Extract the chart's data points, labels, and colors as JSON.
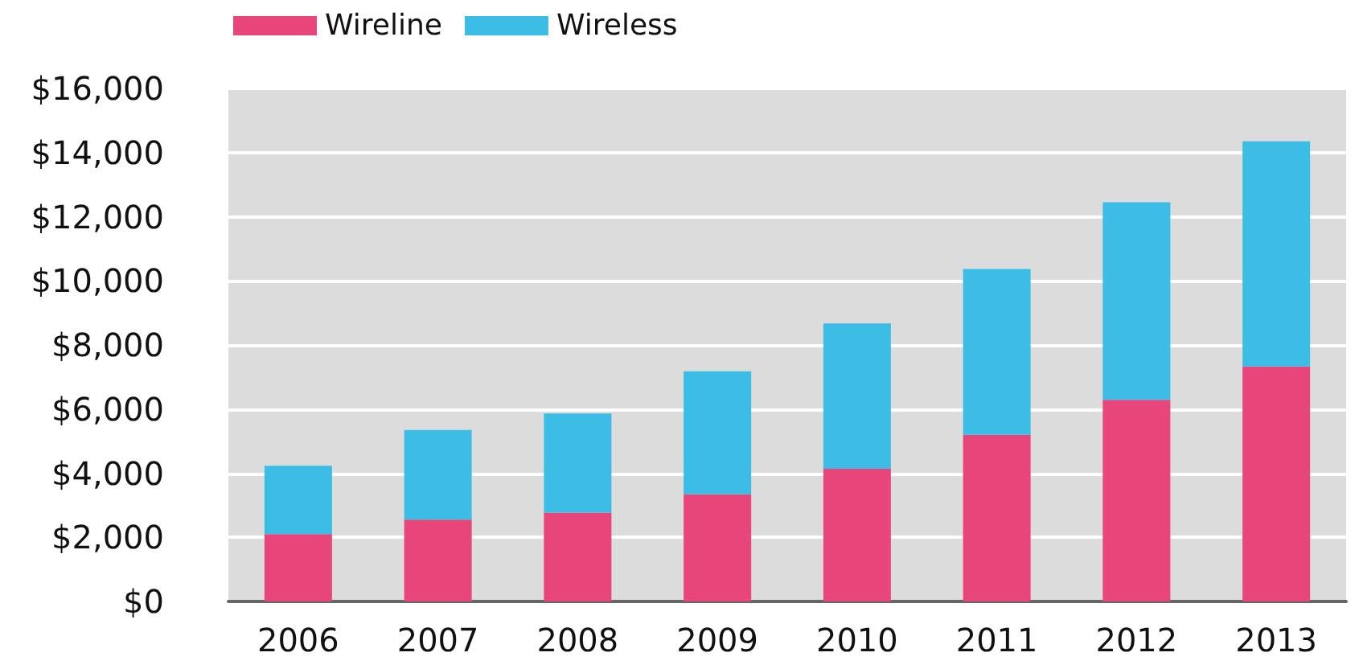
{
  "chart_data": {
    "type": "bar",
    "stacked": true,
    "categories": [
      "2006",
      "2007",
      "2008",
      "2009",
      "2010",
      "2011",
      "2012",
      "2013"
    ],
    "series": [
      {
        "name": "Wireline",
        "color": "#e8457a",
        "values": [
          2100,
          2550,
          2770,
          3340,
          4140,
          5200,
          6290,
          7330
        ]
      },
      {
        "name": "Wireless",
        "color": "#3bbde6",
        "values": [
          2130,
          2800,
          3090,
          3840,
          4530,
          5170,
          6160,
          7020
        ]
      }
    ],
    "ylim": [
      0,
      16000
    ],
    "yticks": [
      {
        "value": 0,
        "label": "$0"
      },
      {
        "value": 2000,
        "label": "$2,000"
      },
      {
        "value": 4000,
        "label": "$4,000"
      },
      {
        "value": 6000,
        "label": "$6,000"
      },
      {
        "value": 8000,
        "label": "$8,000"
      },
      {
        "value": 10000,
        "label": "$10,000"
      },
      {
        "value": 12000,
        "label": "$12,000"
      },
      {
        "value": 14000,
        "label": "$14,000"
      },
      {
        "value": 16000,
        "label": "$16,000"
      }
    ],
    "grid": "y",
    "legend": "top left"
  }
}
